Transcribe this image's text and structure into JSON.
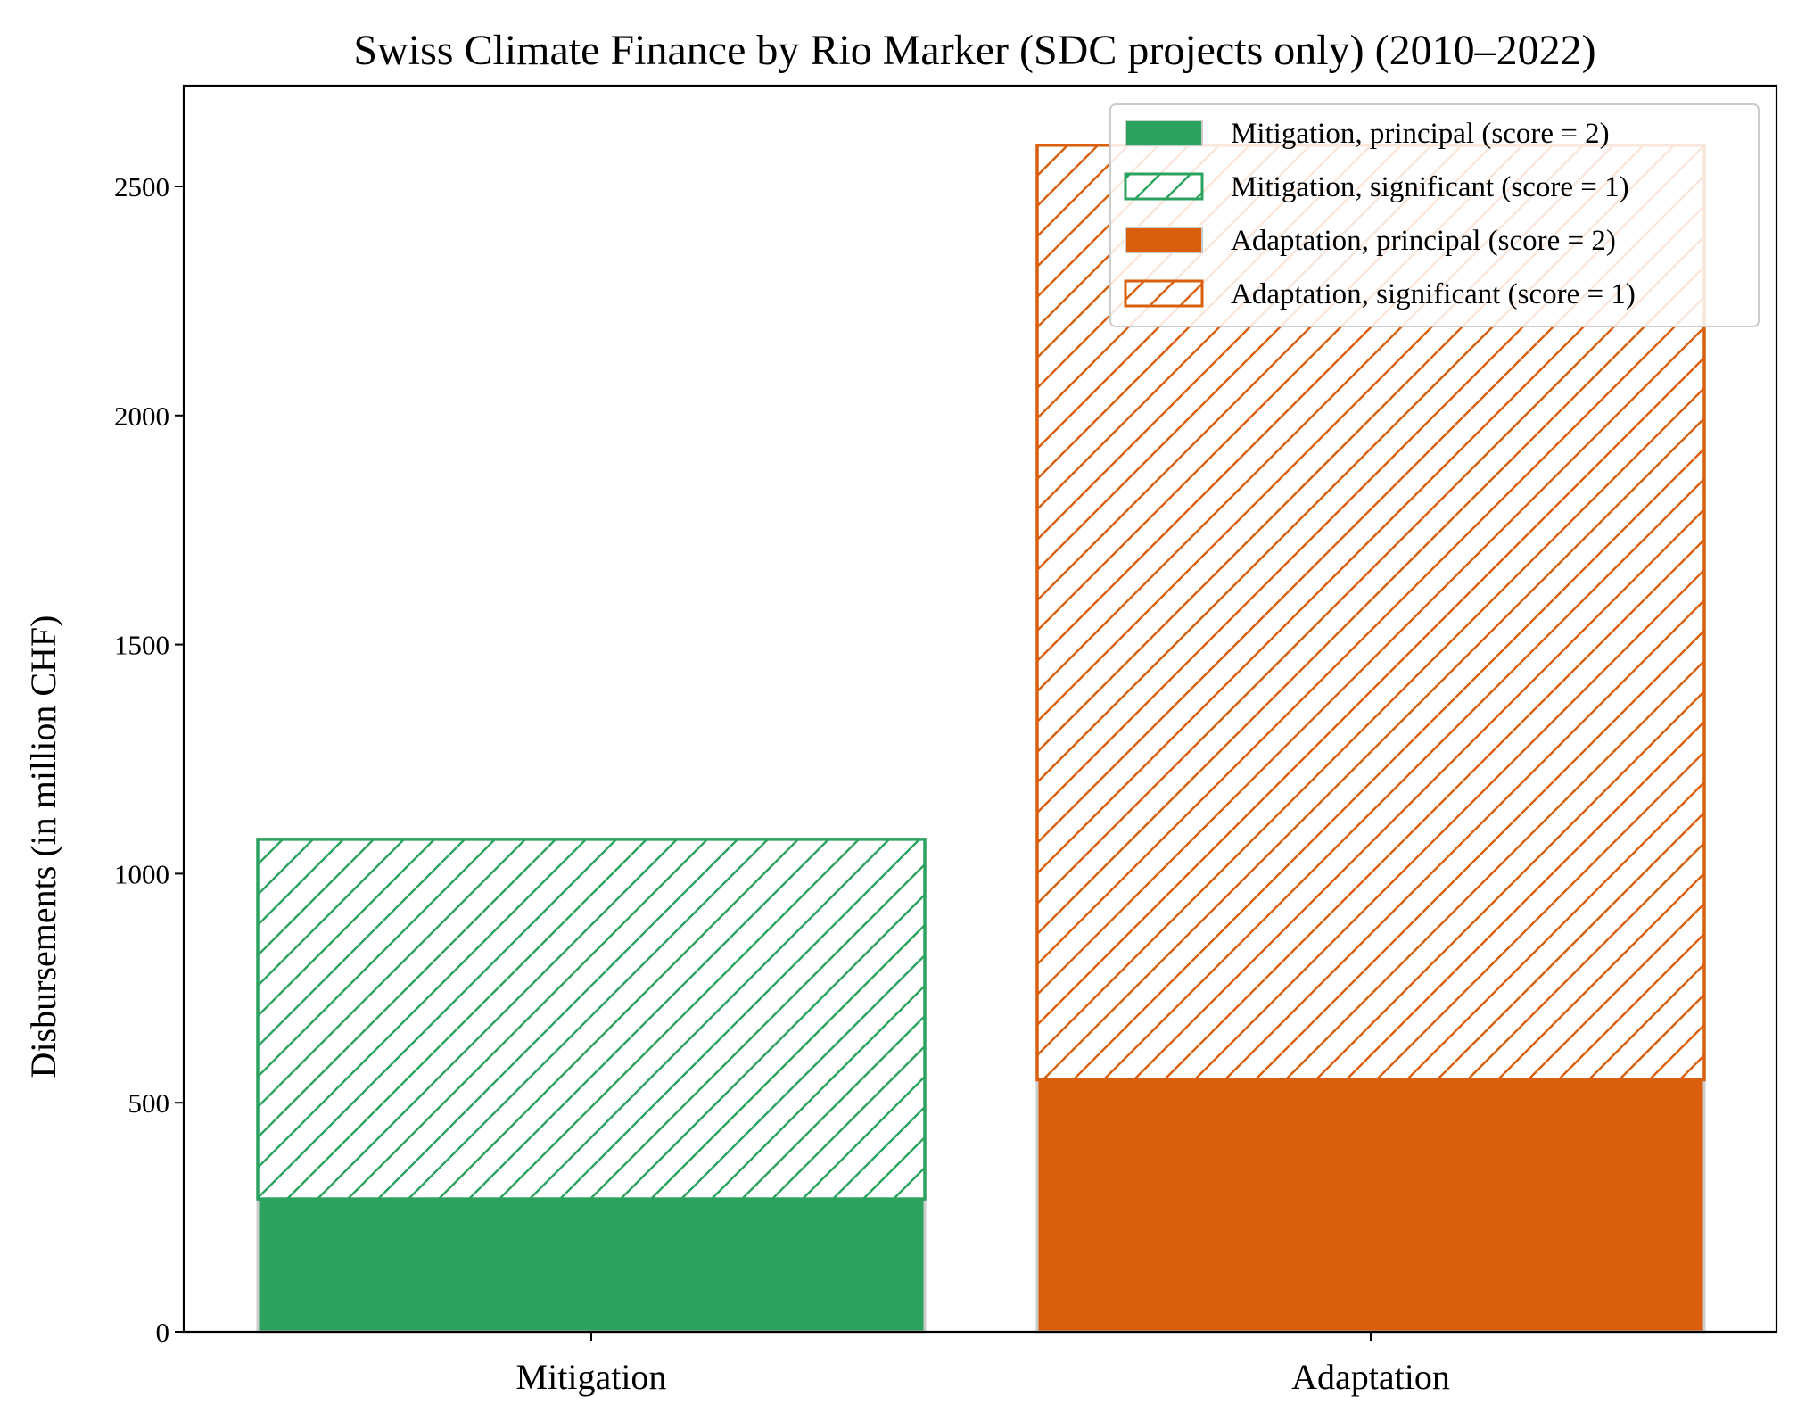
{
  "chart_data": {
    "type": "bar",
    "stacked": true,
    "title": "Swiss Climate Finance by Rio Marker (SDC projects only) (2010–2022)",
    "xlabel": "",
    "ylabel": "Disbursements (in million CHF)",
    "categories": [
      "Mitigation",
      "Adaptation"
    ],
    "ylim": [
      0,
      2720
    ],
    "yticks": [
      0,
      500,
      1000,
      1500,
      2000,
      2500
    ],
    "grid": false,
    "legend_position": "top-right",
    "series": [
      {
        "name": "Mitigation, principal (score = 2)",
        "category": "Mitigation",
        "value": 290,
        "color": "#2ca25f",
        "fill": "solid"
      },
      {
        "name": "Mitigation, significant (score = 1)",
        "category": "Mitigation",
        "value": 785,
        "color": "#2ca25f",
        "fill": "hatch"
      },
      {
        "name": "Adaptation, principal (score = 2)",
        "category": "Adaptation",
        "value": 550,
        "color": "#d95f0e",
        "fill": "solid"
      },
      {
        "name": "Adaptation, significant (score = 1)",
        "category": "Adaptation",
        "value": 2040,
        "color": "#d95f0e",
        "fill": "hatch"
      }
    ]
  }
}
